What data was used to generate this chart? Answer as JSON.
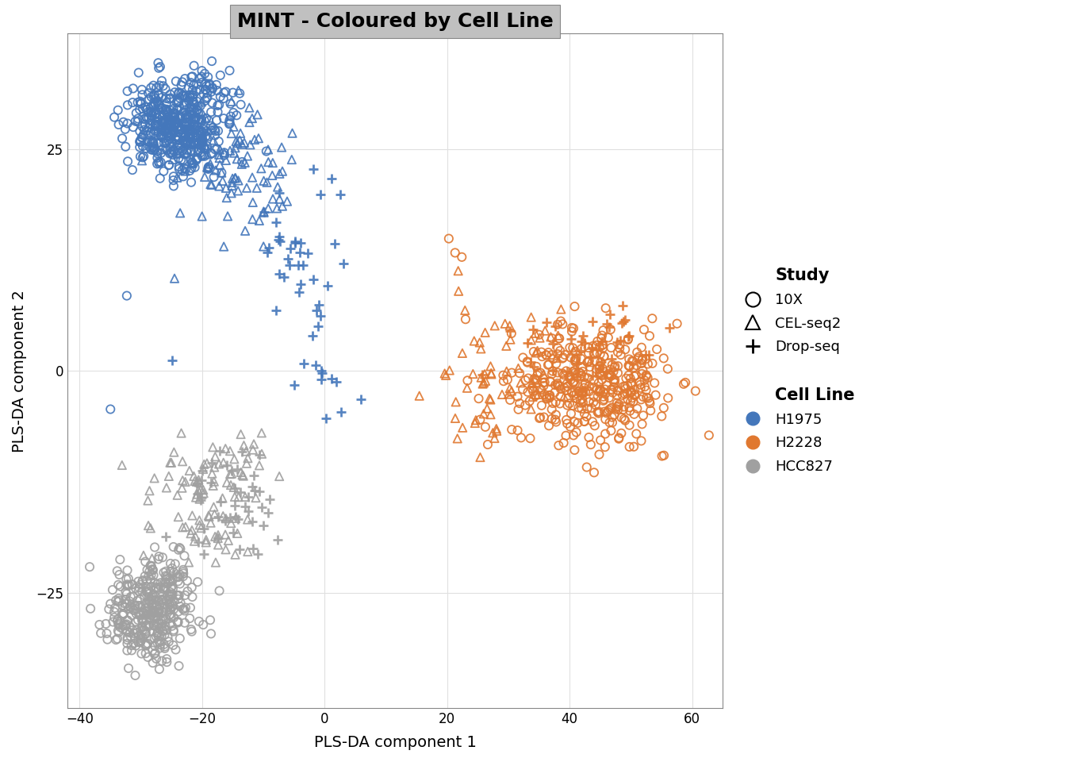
{
  "title": "MINT - Coloured by Cell Line",
  "xlabel": "PLS-DA component 1",
  "ylabel": "PLS-DA component 2",
  "xlim": [
    -42,
    65
  ],
  "ylim": [
    -38,
    38
  ],
  "xticks": [
    -40,
    -20,
    0,
    20,
    40,
    60
  ],
  "yticks": [
    -25,
    0,
    25
  ],
  "title_bg": "#c0c0c0",
  "plot_bg": "#ffffff",
  "grid_color": "#e0e0e0",
  "colors": {
    "H1975": "#4477bb",
    "H2228": "#e07830",
    "HCC827": "#a0a0a0"
  },
  "cell_lines": [
    "H1975",
    "H2228",
    "HCC827"
  ],
  "studies": [
    "10X",
    "CEL-seq2",
    "Drop-seq"
  ],
  "marker_size": 55,
  "marker_linewidth": 1.3,
  "alpha": 0.9,
  "seed": 42
}
